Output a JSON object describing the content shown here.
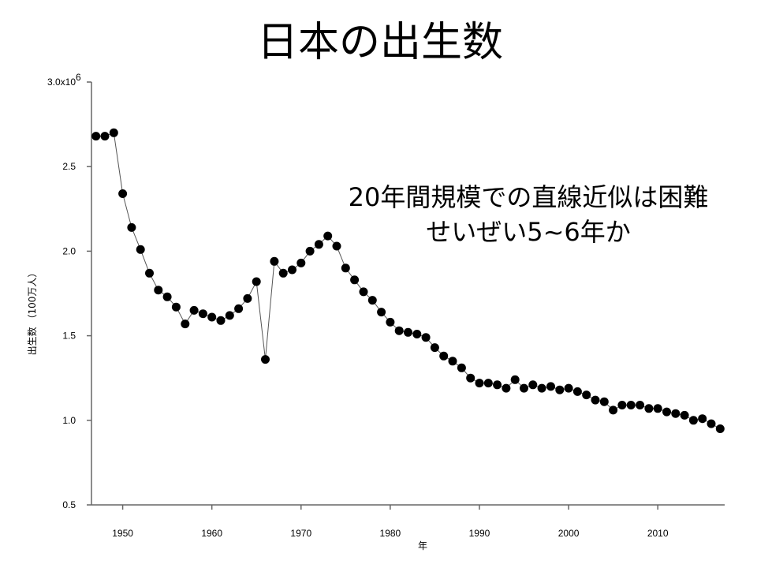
{
  "slide": {
    "title": "日本の出生数",
    "annotation": [
      "20年間規模での直線近似は困難",
      "せいぜい5~6年か"
    ]
  },
  "chart_data": {
    "type": "scatter",
    "title": "日本の出生数",
    "xlabel": "年",
    "ylabel": "出生数 （100万人）",
    "xlim": [
      1946.5,
      2017.5
    ],
    "ylim": [
      0.5,
      3.0
    ],
    "xticks": [
      1950,
      1960,
      1970,
      1980,
      1990,
      2000,
      2010
    ],
    "yticks": [
      0.5,
      1.0,
      1.5,
      2.0,
      2.5,
      3.0
    ],
    "ytick_labels": [
      "0.5",
      "1.0",
      "1.5",
      "2.0",
      "2.5",
      "3.0x10"
    ],
    "ytick_top_exponent": "6",
    "series": [
      {
        "connected": true,
        "color": "#000000",
        "x": [
          1947,
          1948,
          1949,
          1950,
          1951,
          1952,
          1953,
          1954,
          1955,
          1956,
          1957,
          1958,
          1959,
          1960,
          1961,
          1962,
          1963,
          1964,
          1965,
          1966,
          1967,
          1968,
          1969,
          1970,
          1971,
          1972,
          1973,
          1974,
          1975,
          1976,
          1977,
          1978,
          1979,
          1980,
          1981,
          1982,
          1983,
          1984,
          1985,
          1986,
          1987,
          1988,
          1989,
          1990,
          1991,
          1992,
          1993,
          1994,
          1995,
          1996,
          1997,
          1998,
          1999,
          2000,
          2001,
          2002,
          2003,
          2004,
          2005,
          2006,
          2007,
          2008,
          2009,
          2010,
          2011,
          2012,
          2013,
          2014,
          2015,
          2016,
          2017
        ],
        "y": [
          2.68,
          2.68,
          2.7,
          2.34,
          2.14,
          2.01,
          1.87,
          1.77,
          1.73,
          1.67,
          1.57,
          1.65,
          1.63,
          1.61,
          1.59,
          1.62,
          1.66,
          1.72,
          1.82,
          1.36,
          1.94,
          1.87,
          1.89,
          1.93,
          2.0,
          2.04,
          2.09,
          2.03,
          1.9,
          1.83,
          1.76,
          1.71,
          1.64,
          1.58,
          1.53,
          1.52,
          1.51,
          1.49,
          1.43,
          1.38,
          1.35,
          1.31,
          1.25,
          1.22,
          1.22,
          1.21,
          1.19,
          1.24,
          1.19,
          1.21,
          1.19,
          1.2,
          1.18,
          1.19,
          1.17,
          1.15,
          1.12,
          1.11,
          1.06,
          1.09,
          1.09,
          1.09,
          1.07,
          1.07,
          1.05,
          1.04,
          1.03,
          1.0,
          1.01,
          0.98,
          0.95
        ]
      }
    ]
  }
}
